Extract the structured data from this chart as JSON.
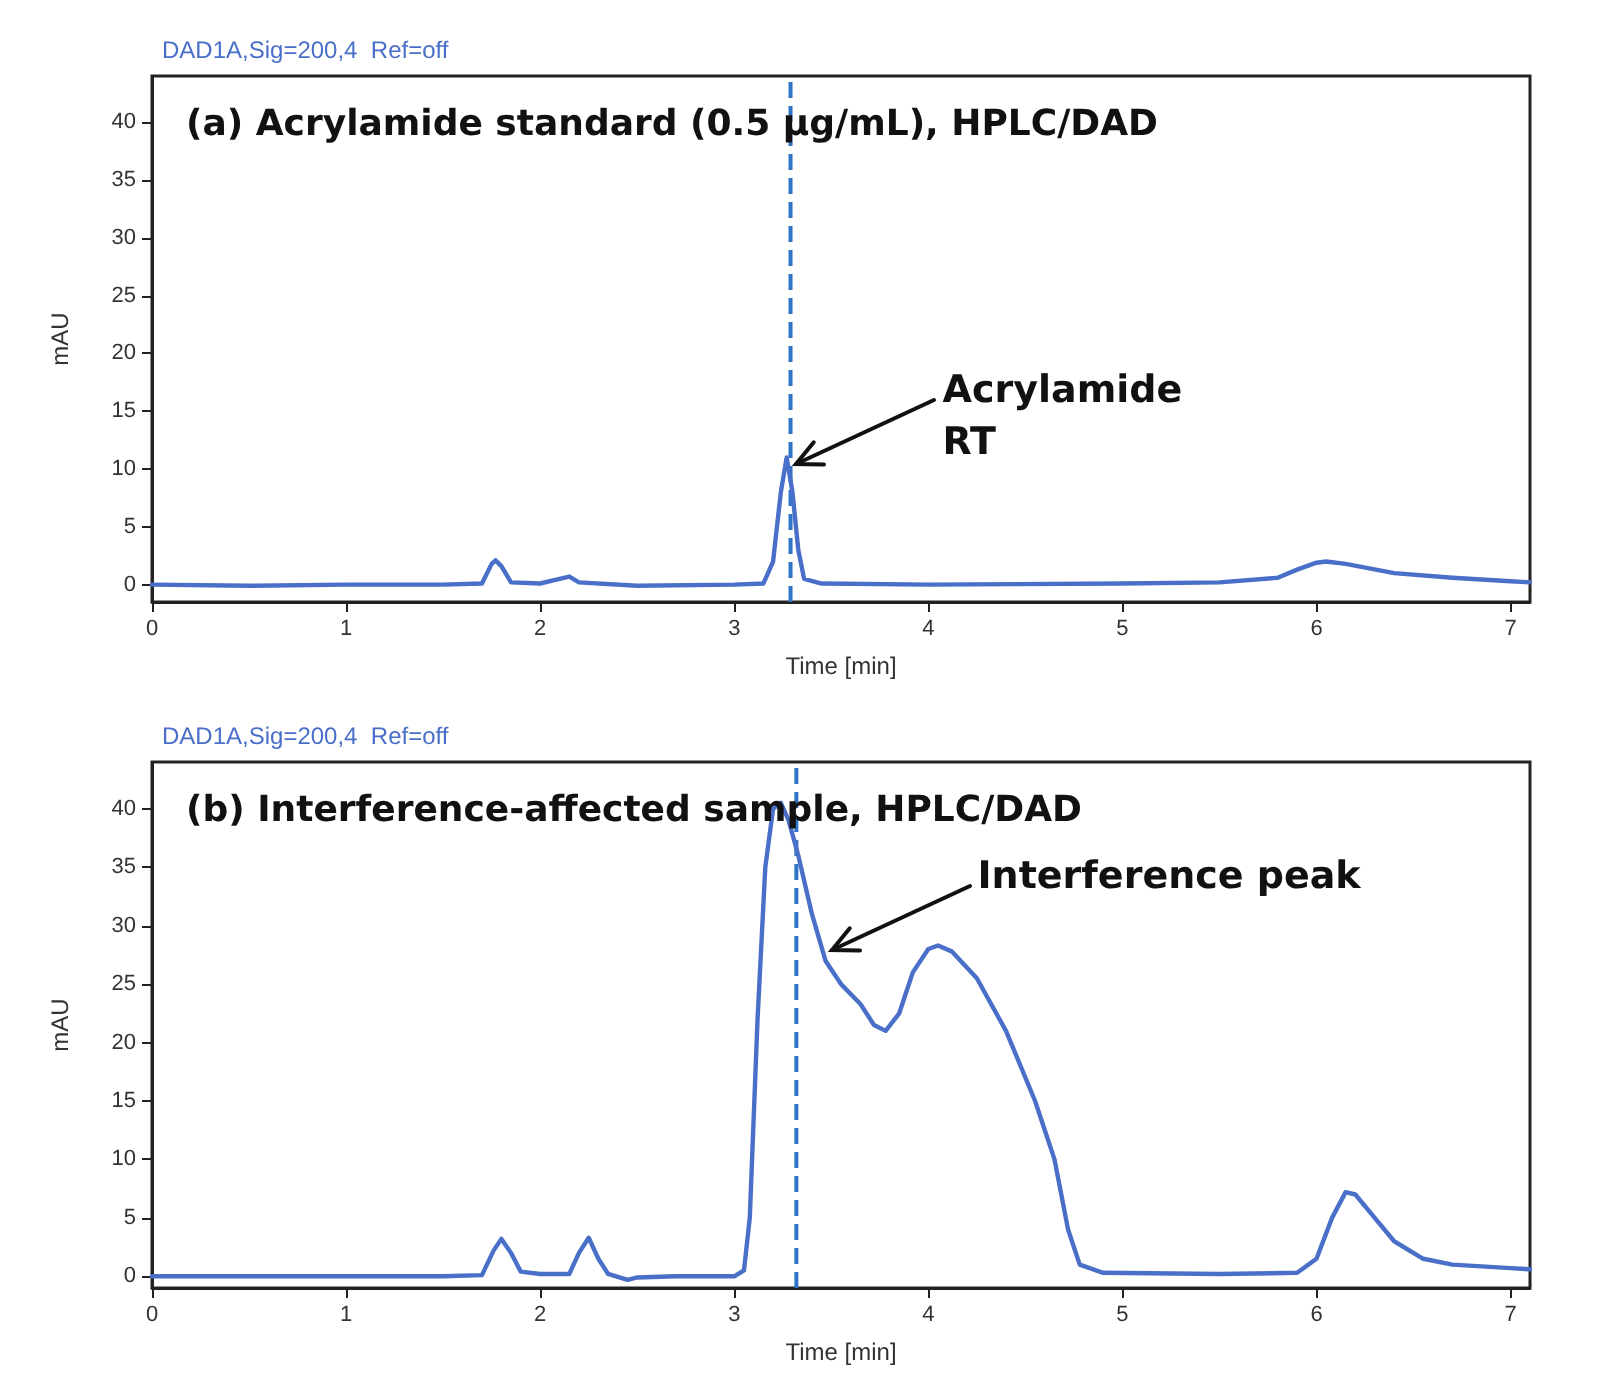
{
  "chart_data": [
    {
      "type": "line",
      "title": "(a) Acrylamide standard (0.5 µg/mL), HPLC/DAD",
      "subtitle": "DAD1A,Sig=200,4  Ref=off",
      "xlabel": "Time [min]",
      "ylabel": "mAU",
      "xlim": [
        0,
        7.1
      ],
      "ylim": [
        -1.5,
        44
      ],
      "xticks": [
        0,
        1,
        2,
        3,
        4,
        5,
        6,
        7
      ],
      "yticks": [
        0,
        5,
        10,
        15,
        20,
        25,
        30,
        35,
        40
      ],
      "grid": false,
      "marker": "none",
      "line_style": "solid",
      "series": [
        {
          "color": "#4a6fc8",
          "x": [
            0,
            0.5,
            1,
            1.5,
            1.7,
            1.75,
            1.77,
            1.8,
            1.85,
            2,
            2.1,
            2.15,
            2.2,
            2.5,
            3,
            3.15,
            3.2,
            3.24,
            3.27,
            3.3,
            3.33,
            3.36,
            3.45,
            4,
            5,
            5.5,
            5.8,
            5.9,
            6,
            6.05,
            6.15,
            6.4,
            6.7,
            7,
            7.1
          ],
          "values": [
            0,
            -0.1,
            0,
            0,
            0.1,
            1.8,
            2.1,
            1.6,
            0.2,
            0.1,
            0.5,
            0.7,
            0.2,
            -0.1,
            0,
            0.1,
            2,
            8,
            11,
            8,
            3,
            0.5,
            0.1,
            0,
            0.1,
            0.2,
            0.6,
            1.3,
            1.9,
            2,
            1.8,
            1,
            0.6,
            0.3,
            0.2
          ]
        }
      ],
      "ref_lines": [
        {
          "axis": "x",
          "value": 3.29,
          "color": "#2e75c8",
          "line_style": "dashed"
        }
      ],
      "annotations": [
        {
          "text": "Acrylamide\nRT",
          "x": 3.29,
          "y": 10.5
        }
      ]
    },
    {
      "type": "line",
      "title": "(b) Interference-affected sample, HPLC/DAD",
      "subtitle": "DAD1A,Sig=200,4  Ref=off",
      "xlabel": "Time [min]",
      "ylabel": "mAU",
      "xlim": [
        0,
        7.1
      ],
      "ylim": [
        -1,
        44
      ],
      "xticks": [
        0,
        1,
        2,
        3,
        4,
        5,
        6,
        7
      ],
      "yticks": [
        0,
        5,
        10,
        15,
        20,
        25,
        30,
        35,
        40
      ],
      "grid": false,
      "marker": "none",
      "line_style": "solid",
      "series": [
        {
          "color": "#4a6fc8",
          "x": [
            0,
            1,
            1.5,
            1.7,
            1.76,
            1.8,
            1.85,
            1.9,
            2,
            2.15,
            2.2,
            2.25,
            2.3,
            2.35,
            2.45,
            2.5,
            2.7,
            3,
            3.05,
            3.08,
            3.12,
            3.16,
            3.2,
            3.24,
            3.28,
            3.33,
            3.4,
            3.47,
            3.55,
            3.65,
            3.72,
            3.78,
            3.85,
            3.92,
            4,
            4.05,
            4.12,
            4.25,
            4.4,
            4.55,
            4.65,
            4.72,
            4.78,
            4.9,
            5.5,
            5.9,
            6,
            6.08,
            6.15,
            6.2,
            6.3,
            6.4,
            6.55,
            6.7,
            7,
            7.1
          ],
          "values": [
            0,
            0,
            0,
            0.1,
            2.2,
            3.2,
            2,
            0.4,
            0.2,
            0.2,
            2,
            3.3,
            1.5,
            0.2,
            -0.3,
            -0.1,
            0,
            0,
            0.5,
            5,
            22,
            35,
            40,
            40.5,
            39,
            36,
            31,
            27,
            25,
            23.3,
            21.5,
            21,
            22.5,
            26,
            28,
            28.3,
            27.8,
            25.5,
            21,
            15,
            10,
            4,
            1,
            0.3,
            0.2,
            0.3,
            1.5,
            5,
            7.2,
            7,
            5,
            3,
            1.5,
            1,
            0.7,
            0.6
          ]
        }
      ],
      "ref_lines": [
        {
          "axis": "x",
          "value": 3.32,
          "color": "#2e75c8",
          "line_style": "dashed"
        }
      ],
      "annotations": [
        {
          "text": "Interference peak",
          "x": 3.47,
          "y": 28
        }
      ]
    }
  ]
}
